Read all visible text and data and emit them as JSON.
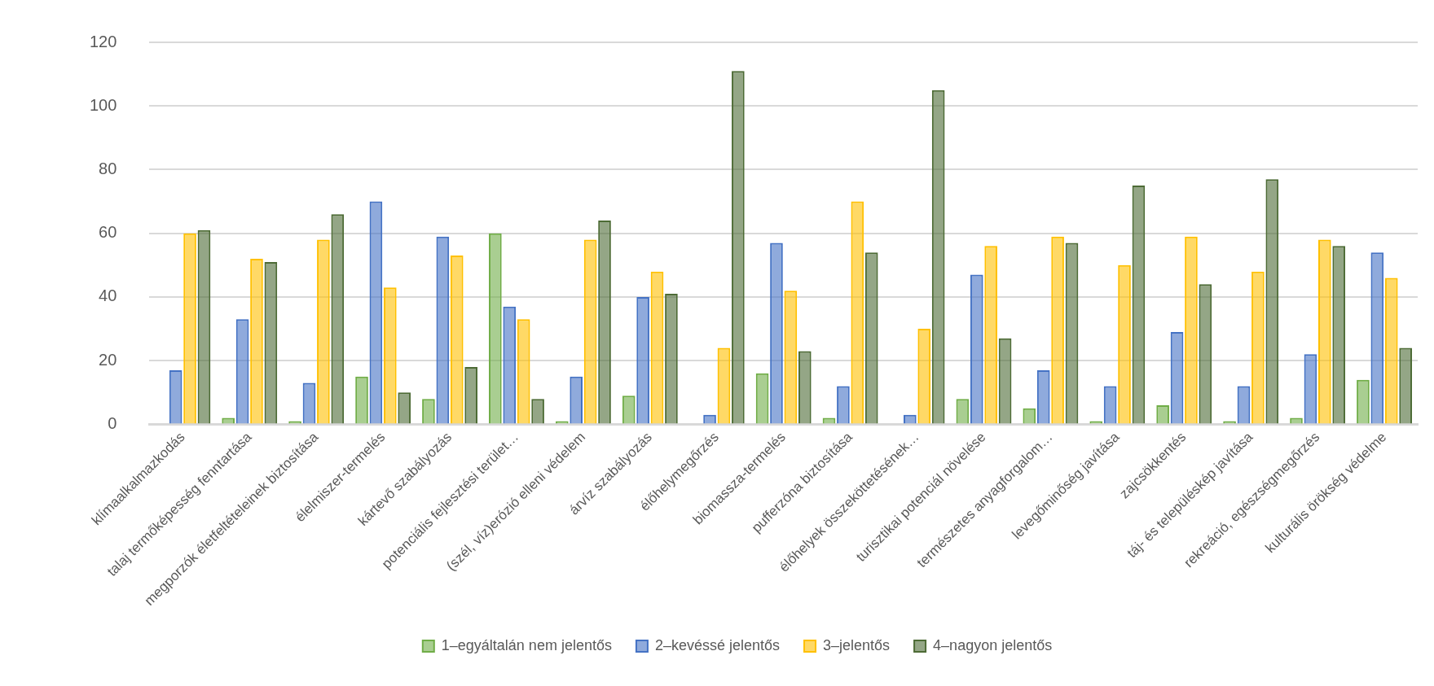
{
  "chart_data": {
    "type": "bar",
    "categories": [
      "klímaalkalmazkodás",
      "talaj termőképesség fenntartása",
      "megporzók életfeltételeinek biztosítása",
      "élelmiszer-termelés",
      "kártevő szabályozás",
      "potenciális fejlesztési terület…",
      "(szél, víz)erózió elleni védelem",
      "árvíz szabályozás",
      "élőhelymegőrzés",
      "biomassza-termelés",
      "pufferzóna biztosítása",
      "élőhelyek összeköttetésének…",
      "turisztikai potenciál növelése",
      "természetes anyagforgalom…",
      "levegőminőség javítása",
      "zajcsökkentés",
      "táj- és településkép javítása",
      "rekreáció, egészségmegőrzés",
      "kulturális örökség védelme"
    ],
    "series": [
      {
        "name": "1–egyáltalán nem jelentős",
        "color": "#70ad47",
        "values": [
          0,
          2,
          1,
          15,
          8,
          60,
          1,
          9,
          0,
          16,
          2,
          0,
          8,
          5,
          1,
          6,
          1,
          2,
          14
        ]
      },
      {
        "name": "2–kevéssé jelentős",
        "color": "#4472c4",
        "values": [
          17,
          33,
          13,
          70,
          59,
          37,
          15,
          40,
          3,
          57,
          12,
          3,
          47,
          17,
          12,
          29,
          12,
          22,
          54
        ]
      },
      {
        "name": "3–jelentős",
        "color": "#ffc000",
        "values": [
          60,
          52,
          58,
          43,
          53,
          33,
          58,
          48,
          24,
          42,
          70,
          30,
          56,
          59,
          50,
          59,
          48,
          58,
          46
        ]
      },
      {
        "name": "4–nagyon jelentős",
        "color": "#4d6b35",
        "values": [
          61,
          51,
          66,
          10,
          18,
          8,
          64,
          41,
          111,
          23,
          54,
          105,
          27,
          57,
          75,
          44,
          77,
          56,
          24
        ]
      }
    ],
    "ylim": [
      0,
      120
    ],
    "yticks": [
      0,
      20,
      40,
      60,
      80,
      100,
      120
    ],
    "grid": "y",
    "legend": "bottom"
  }
}
